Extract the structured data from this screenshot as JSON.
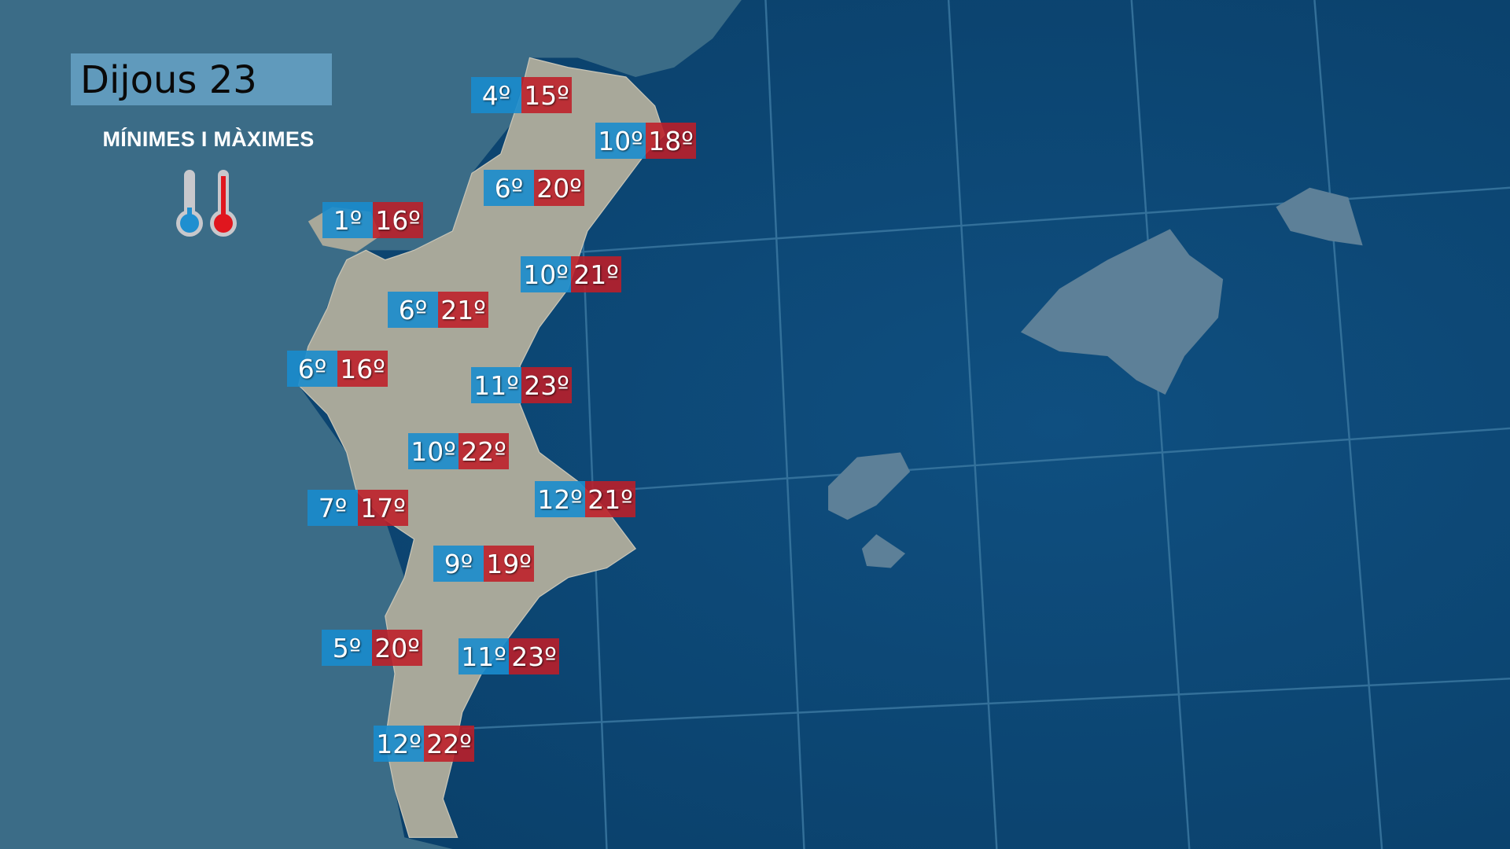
{
  "header": {
    "title": "Dijous 23",
    "subtitle": "MÍNIMES I MÀXIMES"
  },
  "legend": {
    "min_icon": "thermometer-cold-icon",
    "max_icon": "thermometer-hot-icon",
    "min_color": "#1e8fd0",
    "max_color": "#e0161e"
  },
  "colors": {
    "min_box": "#198ccd",
    "max_box": "#be1e28",
    "sea": "#0e4a78",
    "land": "#3d6e88"
  },
  "stations": [
    {
      "min": "4º",
      "max": "15º"
    },
    {
      "min": "10º",
      "max": "18º"
    },
    {
      "min": "6º",
      "max": "20º"
    },
    {
      "min": "1º",
      "max": "16º"
    },
    {
      "min": "10º",
      "max": "21º"
    },
    {
      "min": "6º",
      "max": "21º"
    },
    {
      "min": "6º",
      "max": "16º"
    },
    {
      "min": "11º",
      "max": "23º"
    },
    {
      "min": "10º",
      "max": "22º"
    },
    {
      "min": "7º",
      "max": "17º"
    },
    {
      "min": "12º",
      "max": "21º"
    },
    {
      "min": "9º",
      "max": "19º"
    },
    {
      "min": "5º",
      "max": "20º"
    },
    {
      "min": "11º",
      "max": "23º"
    },
    {
      "min": "12º",
      "max": "22º"
    }
  ]
}
